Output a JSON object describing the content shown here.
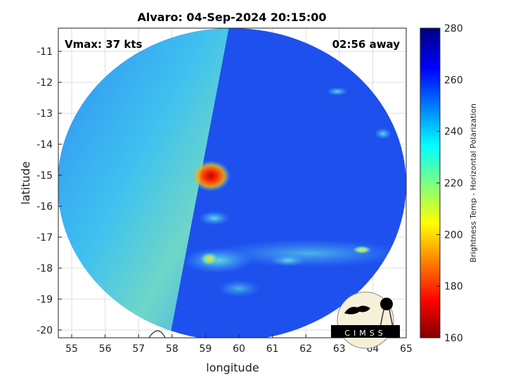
{
  "title": "Alvaro: 04-Sep-2024 20:15:00",
  "annotations": {
    "vmax": "Vmax: 37 kts",
    "time_away": "02:56 away"
  },
  "xaxis": {
    "label": "longitude",
    "ticks": [
      "55",
      "56",
      "57",
      "58",
      "59",
      "60",
      "61",
      "62",
      "63",
      "64",
      "65"
    ],
    "range": [
      54.6,
      65
    ]
  },
  "yaxis": {
    "label": "latitude",
    "ticks": [
      "-11",
      "-12",
      "-13",
      "-14",
      "-15",
      "-16",
      "-17",
      "-18",
      "-19",
      "-20"
    ],
    "range": [
      -20.25,
      -10.25
    ]
  },
  "colorbar": {
    "label": "Brightness Temp - Horizontal Polarization",
    "ticks": [
      "280",
      "260",
      "240",
      "220",
      "200",
      "180",
      "160"
    ],
    "range": [
      160,
      280
    ],
    "colormap": "jet"
  },
  "features": {
    "warm_core_center": {
      "lon": 59.2,
      "lat": -15.1,
      "value_min": 180
    }
  },
  "logo": {
    "text": "CIMSS"
  },
  "colors": {
    "background_swath": "#1a4cf0",
    "left_swath": "#38b8f0",
    "hot_spot": "#e0100a"
  }
}
